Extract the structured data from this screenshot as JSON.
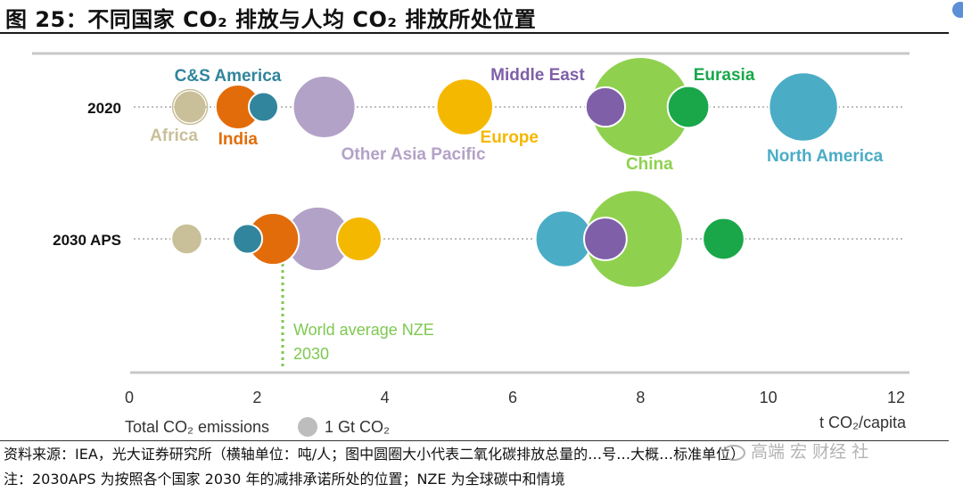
{
  "figure_title": "图 25：不同国家 CO₂ 排放与人均 CO₂ 排放所处位置",
  "source_note": "资料来源：IEA，光大证券研究所（横轴单位：吨/人；图中圆圈大小代表二氧化碳排放总量的…号…大概…标准单位）",
  "footnote": "注：2030APS 为按照各个国家 2030 年的减排承诺所处的位置；NZE 为全球碳中和情境",
  "watermark": "高端 宏 财经 社",
  "colors": {
    "Africa": "#c9bf99",
    "India": "#e36c0a",
    "C&S America": "#31859c",
    "Other Asia Pacific": "#b3a2c7",
    "Europe": "#f5b800",
    "Middle East": "#7f5fa8",
    "China": "#8fd14f",
    "Eurasia": "#19a74a",
    "North America": "#4bacc6",
    "nze_line": "#7ec850"
  },
  "chart_data": {
    "type": "scatter",
    "xlabel": "t CO₂/capita",
    "xlim": [
      0,
      12
    ],
    "xticks": [
      "0",
      "2",
      "4",
      "6",
      "8",
      "10",
      "12"
    ],
    "rows": [
      "2020",
      "2030 APS"
    ],
    "size_legend": {
      "label": "Total CO₂ emissions",
      "reference": "1 Gt CO₂"
    },
    "series": [
      {
        "name": "Africa",
        "label_color": "#c9bf99",
        "points": [
          {
            "row": "2020",
            "x": 0.95,
            "gt": 1.0
          },
          {
            "row": "2030 APS",
            "x": 0.9,
            "gt": 1.1
          }
        ]
      },
      {
        "name": "India",
        "label_color": "#e36c0a",
        "points": [
          {
            "row": "2020",
            "x": 1.7,
            "gt": 2.3
          },
          {
            "row": "2030 APS",
            "x": 2.25,
            "gt": 3.1
          }
        ]
      },
      {
        "name": "C&S America",
        "label_color": "#31859c",
        "points": [
          {
            "row": "2020",
            "x": 2.1,
            "gt": 1.0
          },
          {
            "row": "2030 APS",
            "x": 1.85,
            "gt": 1.0
          }
        ]
      },
      {
        "name": "Other Asia Pacific",
        "label_color": "#b3a2c7",
        "points": [
          {
            "row": "2020",
            "x": 3.05,
            "gt": 4.5
          },
          {
            "row": "2030 APS",
            "x": 2.95,
            "gt": 4.8
          }
        ]
      },
      {
        "name": "Europe",
        "label_color": "#f5b800",
        "points": [
          {
            "row": "2020",
            "x": 5.25,
            "gt": 3.7
          },
          {
            "row": "2030 APS",
            "x": 3.6,
            "gt": 2.3
          }
        ]
      },
      {
        "name": "Middle East",
        "label_color": "#7f5fa8",
        "points": [
          {
            "row": "2020",
            "x": 7.45,
            "gt": 1.8
          },
          {
            "row": "2030 APS",
            "x": 7.45,
            "gt": 2.1
          }
        ]
      },
      {
        "name": "China",
        "label_color": "#8fd14f",
        "points": [
          {
            "row": "2020",
            "x": 8.0,
            "gt": 11.5
          },
          {
            "row": "2030 APS",
            "x": 7.9,
            "gt": 11.0
          }
        ]
      },
      {
        "name": "Eurasia",
        "label_color": "#19a74a",
        "points": [
          {
            "row": "2020",
            "x": 8.75,
            "gt": 2.0
          },
          {
            "row": "2030 APS",
            "x": 9.3,
            "gt": 2.0
          }
        ]
      },
      {
        "name": "North America",
        "label_color": "#4bacc6",
        "points": [
          {
            "row": "2020",
            "x": 10.55,
            "gt": 5.5
          },
          {
            "row": "2030 APS",
            "x": 6.8,
            "gt": 3.7
          }
        ]
      }
    ],
    "reference_line": {
      "label": [
        "World average NZE",
        "2030"
      ],
      "x": 2.4
    }
  }
}
